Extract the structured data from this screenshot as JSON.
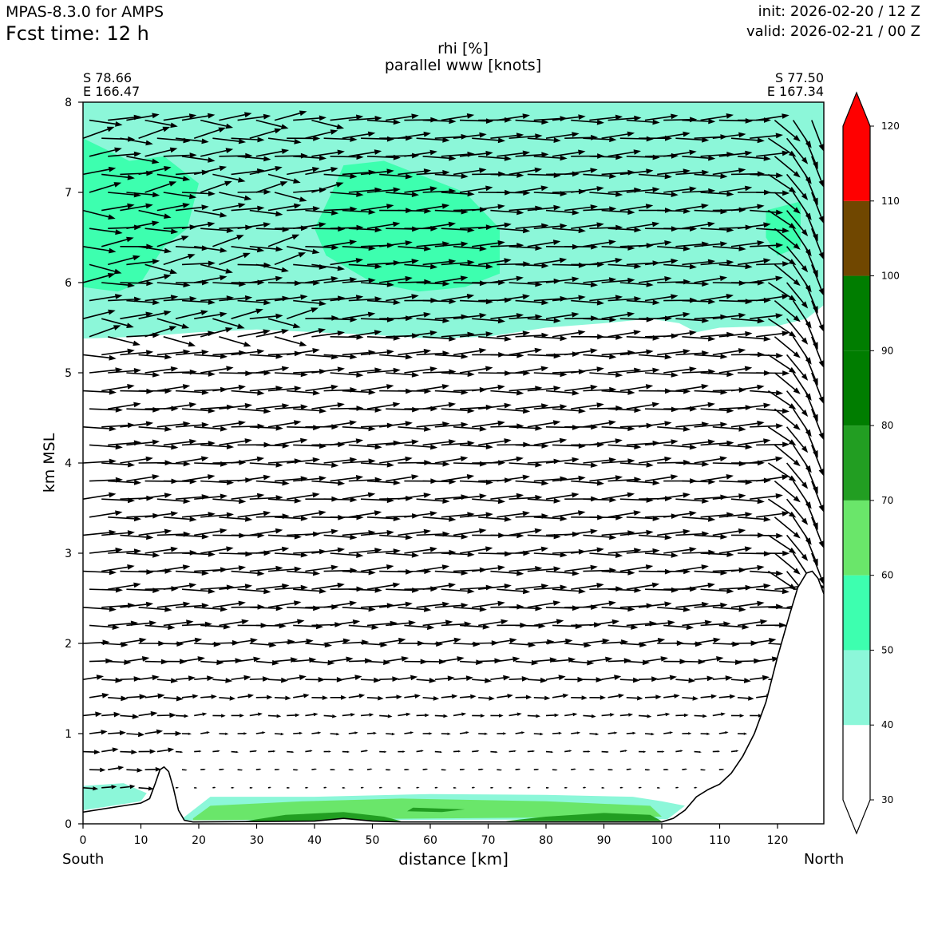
{
  "header": {
    "model": "MPAS-8.3.0 for AMPS",
    "fcst_time": "Fcst time:   12 h",
    "init": "init: 2026-02-20 / 12 Z",
    "valid": "valid: 2026-02-21 / 00 Z"
  },
  "endpoints": {
    "left_lat": "S 78.66",
    "left_lon": "E 166.47",
    "right_lat": "S 77.50",
    "right_lon": "E 167.34",
    "left_dir": "South",
    "right_dir": "North"
  },
  "chart_data": {
    "type": "cross-section",
    "title_line1": "rhi [%]",
    "title_line2": "parallel www [knots]",
    "xlabel": "distance [km]",
    "ylabel": "km MSL",
    "xlim": [
      0,
      128
    ],
    "ylim": [
      0,
      8
    ],
    "x_ticks": [
      0,
      10,
      20,
      30,
      40,
      50,
      60,
      70,
      80,
      90,
      100,
      110,
      120
    ],
    "y_ticks": [
      0,
      1,
      2,
      3,
      4,
      5,
      6,
      7,
      8
    ],
    "colorbar": {
      "levels": [
        30,
        40,
        50,
        60,
        70,
        80,
        90,
        100,
        110,
        120
      ],
      "colors": [
        "#ffffff",
        "#8cf7d9",
        "#3dffaf",
        "#6ae66a",
        "#229e22",
        "#007d00",
        "#007d00",
        "#704700",
        "#ff0000"
      ],
      "extend": "both",
      "over_color": "#ff0000",
      "under_color": "#ffffff"
    },
    "terrain": [
      [
        0,
        0.13
      ],
      [
        10,
        0.23
      ],
      [
        11.5,
        0.28
      ],
      [
        12.5,
        0.45
      ],
      [
        13.3,
        0.6
      ],
      [
        14,
        0.63
      ],
      [
        14.8,
        0.58
      ],
      [
        15.6,
        0.4
      ],
      [
        16.5,
        0.15
      ],
      [
        17.5,
        0.04
      ],
      [
        19,
        0.02
      ],
      [
        40,
        0.03
      ],
      [
        45,
        0.06
      ],
      [
        50,
        0.03
      ],
      [
        55,
        0.02
      ],
      [
        100,
        0.02
      ],
      [
        102,
        0.06
      ],
      [
        104,
        0.15
      ],
      [
        106,
        0.3
      ],
      [
        108,
        0.38
      ],
      [
        110,
        0.44
      ],
      [
        112,
        0.56
      ],
      [
        114,
        0.75
      ],
      [
        116,
        1.0
      ],
      [
        118,
        1.35
      ],
      [
        120,
        1.85
      ],
      [
        122,
        2.3
      ],
      [
        123.5,
        2.62
      ],
      [
        125,
        2.78
      ],
      [
        126,
        2.8
      ],
      [
        127,
        2.72
      ],
      [
        128,
        2.55
      ]
    ],
    "rhi_regions": [
      {
        "level": "40-50",
        "polygon": [
          [
            0,
            8
          ],
          [
            128,
            8
          ],
          [
            128,
            5.75
          ],
          [
            125,
            5.6
          ],
          [
            120,
            5.52
          ],
          [
            110,
            5.5
          ],
          [
            106,
            5.45
          ],
          [
            103,
            5.55
          ],
          [
            98,
            5.6
          ],
          [
            90,
            5.55
          ],
          [
            80,
            5.5
          ],
          [
            70,
            5.4
          ],
          [
            60,
            5.38
          ],
          [
            50,
            5.42
          ],
          [
            40,
            5.45
          ],
          [
            30,
            5.48
          ],
          [
            20,
            5.45
          ],
          [
            10,
            5.4
          ],
          [
            0,
            5.38
          ]
        ]
      },
      {
        "level": "40-50",
        "polygon": [
          [
            0,
            0.42
          ],
          [
            7,
            0.45
          ],
          [
            11,
            0.34
          ],
          [
            10,
            0.25
          ],
          [
            0,
            0.15
          ]
        ]
      },
      {
        "level": "40-50",
        "polygon": [
          [
            17,
            0.05
          ],
          [
            22,
            0.3
          ],
          [
            40,
            0.3
          ],
          [
            60,
            0.33
          ],
          [
            80,
            0.32
          ],
          [
            95,
            0.3
          ],
          [
            100,
            0.25
          ],
          [
            104,
            0.2
          ],
          [
            101,
            0.05
          ],
          [
            17,
            0.04
          ]
        ]
      },
      {
        "level": "50-60",
        "polygon": [
          [
            0,
            7.6
          ],
          [
            8,
            7.35
          ],
          [
            14,
            7.4
          ],
          [
            20,
            7.1
          ],
          [
            18,
            6.6
          ],
          [
            14,
            6.4
          ],
          [
            10,
            6.0
          ],
          [
            6,
            5.9
          ],
          [
            0,
            5.95
          ]
        ]
      },
      {
        "level": "50-60",
        "polygon": [
          [
            45,
            7.3
          ],
          [
            52,
            7.35
          ],
          [
            58,
            7.2
          ],
          [
            66,
            7.0
          ],
          [
            72,
            6.6
          ],
          [
            72,
            6.1
          ],
          [
            66,
            5.95
          ],
          [
            58,
            5.9
          ],
          [
            50,
            6.0
          ],
          [
            42,
            6.3
          ],
          [
            40,
            6.6
          ],
          [
            43,
            7.0
          ]
        ]
      },
      {
        "level": "50-60",
        "polygon": [
          [
            118,
            6.8
          ],
          [
            124,
            6.9
          ],
          [
            124,
            6.4
          ],
          [
            120,
            6.3
          ],
          [
            118,
            6.5
          ]
        ]
      },
      {
        "level": "60-70",
        "polygon": [
          [
            19,
            0.06
          ],
          [
            22,
            0.2
          ],
          [
            38,
            0.25
          ],
          [
            55,
            0.28
          ],
          [
            80,
            0.25
          ],
          [
            98,
            0.2
          ],
          [
            100,
            0.08
          ],
          [
            19,
            0.04
          ]
        ]
      },
      {
        "level": "70-80",
        "polygon": [
          [
            28,
            0.03
          ],
          [
            35,
            0.1
          ],
          [
            45,
            0.13
          ],
          [
            52,
            0.08
          ],
          [
            55,
            0.03
          ]
        ]
      },
      {
        "level": "70-80",
        "polygon": [
          [
            57,
            0.18
          ],
          [
            66,
            0.16
          ],
          [
            62,
            0.13
          ],
          [
            56,
            0.14
          ]
        ]
      },
      {
        "level": "70-80",
        "polygon": [
          [
            73,
            0.03
          ],
          [
            80,
            0.08
          ],
          [
            90,
            0.12
          ],
          [
            98,
            0.1
          ],
          [
            100,
            0.03
          ]
        ]
      }
    ],
    "wind_note": "parallel wind vectors on grid: x 0-128 km every ~3.2 km, z 0.4-7.9 km every 0.2 km; strong westerly flow aloft, weak near surface, steep downslope at north end"
  }
}
